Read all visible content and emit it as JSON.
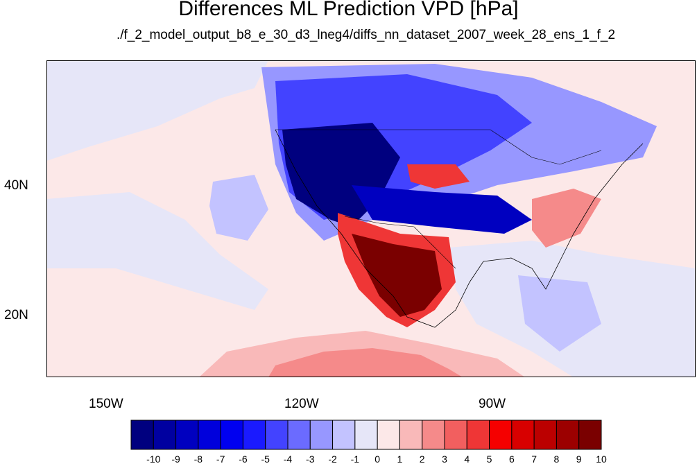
{
  "title": "Differences ML Prediction VPD [hPa]",
  "subtitle": "./f_2_model_output_b8_e_30_d3_lneg4/diffs_nn_dataset_2007_week_28_ens_1_f_2",
  "map": {
    "lon_range": [
      -160,
      -60
    ],
    "lat_range": [
      10,
      59
    ],
    "lon_labels": [
      "150W",
      "120W",
      "90W"
    ],
    "lat_labels": [
      "40N",
      "20N"
    ]
  },
  "colorbar": {
    "labels": [
      "-10",
      "-9",
      "-8",
      "-7",
      "-6",
      "-5",
      "-4",
      "-3",
      "-2",
      "-1",
      "0",
      "1",
      "2",
      "3",
      "4",
      "5",
      "6",
      "7",
      "8",
      "9",
      "10"
    ],
    "colors": [
      "#00007f",
      "#0000a0",
      "#0000c0",
      "#0000dc",
      "#0000f0",
      "#1a1aff",
      "#4343ff",
      "#6b6bff",
      "#9797ff",
      "#c3c3ff",
      "#e6e6f8",
      "#fce8e8",
      "#f9b9b9",
      "#f58a8a",
      "#f25f5f",
      "#ef3636",
      "#f50000",
      "#d80000",
      "#bb0000",
      "#9c0000",
      "#7a0000"
    ]
  },
  "colors": {
    "background_field": "#fce8e8",
    "strong_negative": "#0000a0",
    "strong_positive": "#9c0000"
  }
}
